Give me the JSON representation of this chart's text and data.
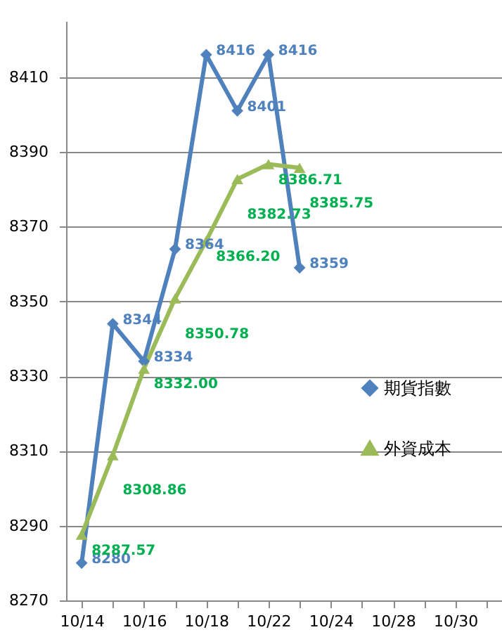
{
  "chart_data": {
    "type": "line",
    "categories": [
      "10/14",
      null,
      "10/16",
      null,
      "10/18",
      null,
      "10/22",
      null,
      "10/24",
      null,
      "10/28",
      null,
      "10/30",
      null
    ],
    "series": [
      {
        "name": "期貨指數",
        "color": "#4f81bd",
        "marker": "diamond",
        "values": [
          8280,
          8344,
          8334,
          8364,
          8416,
          8401,
          8416,
          8359,
          null,
          null,
          null,
          null,
          null,
          null
        ],
        "value_labels": [
          "8280",
          "8344",
          "8334",
          "8364",
          "8416",
          "8401",
          "8416",
          "8359",
          null,
          null,
          null,
          null,
          null,
          null
        ]
      },
      {
        "name": "外資成本",
        "color": "#9bbb59",
        "marker": "triangle",
        "values": [
          8287.57,
          8308.86,
          8332.0,
          8350.78,
          8366.2,
          8382.73,
          8386.71,
          8385.75,
          null,
          null,
          null,
          null,
          null,
          null
        ],
        "value_labels": [
          "8287.57",
          "8308.86",
          "8332.00",
          "8350.78",
          "8366.20",
          "8382.73",
          "8386.71",
          "8385.75",
          null,
          null,
          null,
          null,
          null,
          null
        ]
      }
    ],
    "ylim": [
      8270,
      8425
    ],
    "yticks": [
      8270,
      8290,
      8310,
      8330,
      8350,
      8370,
      8390,
      8410
    ],
    "grid": "y",
    "legend": "right"
  }
}
